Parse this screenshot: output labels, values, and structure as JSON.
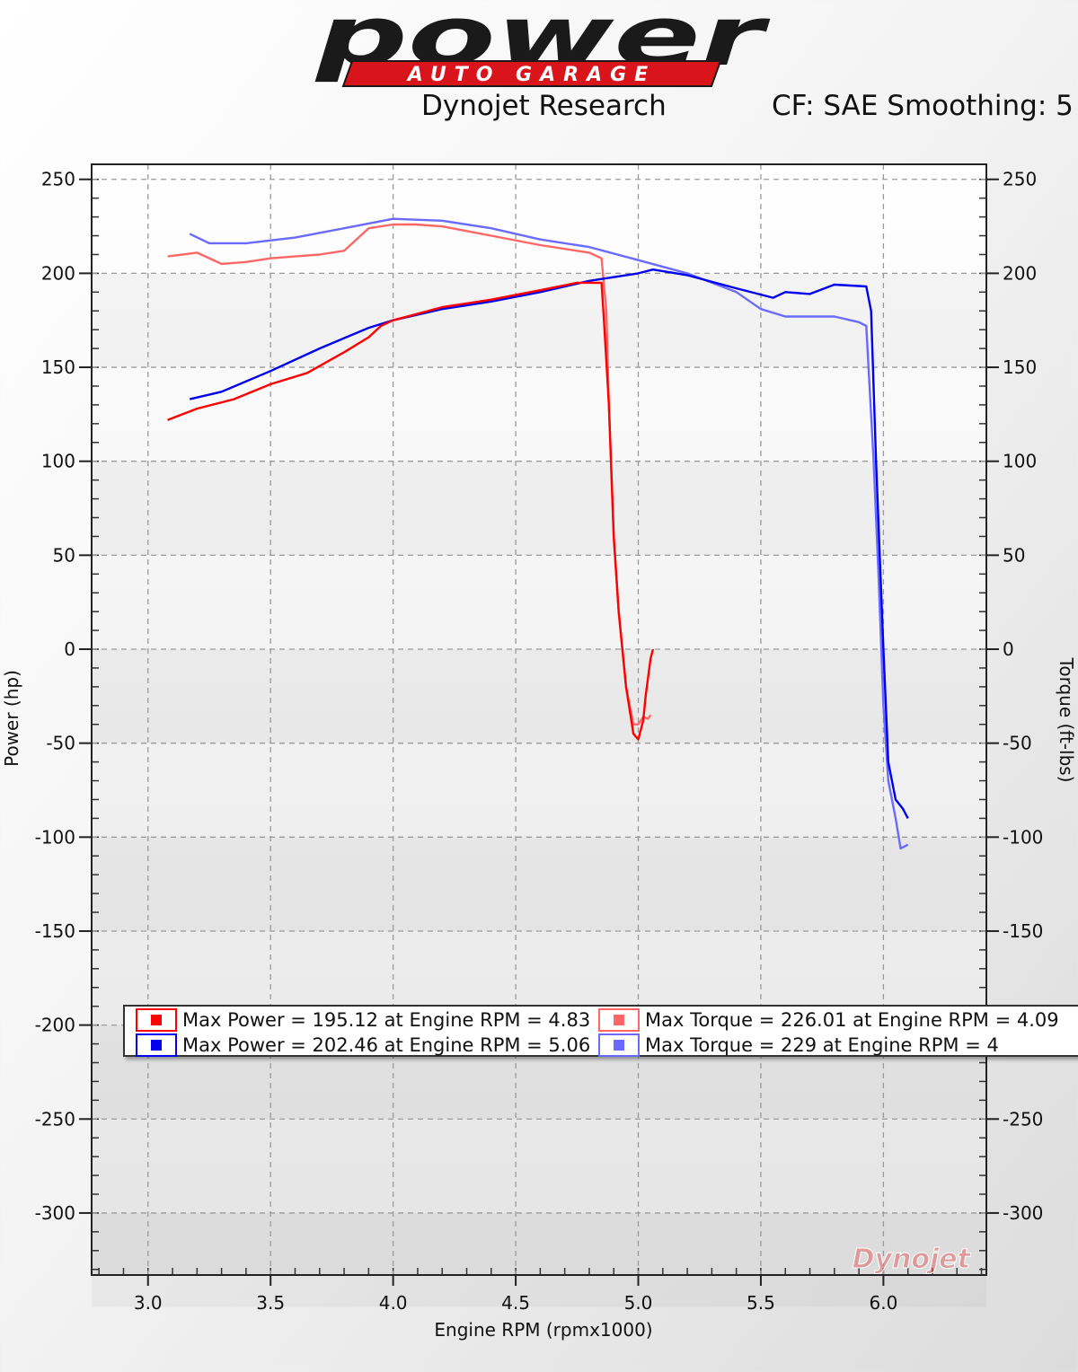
{
  "logo": {
    "main": "power",
    "sub": "AUTO GARAGE"
  },
  "header": {
    "left": "Dynojet Research",
    "right": "CF: SAE Smoothing: 5"
  },
  "colors": {
    "run1_power": "#ff0000",
    "run1_torque": "#ff6666",
    "run2_power": "#0000ee",
    "run2_torque": "#6a6aff"
  },
  "chart_data": {
    "type": "line",
    "xlabel": "Engine RPM (rpmx1000)",
    "ylabel": "Power (hp)",
    "y2label": "Torque (ft-lbs)",
    "xlim": [
      2.77,
      6.42
    ],
    "ylim": [
      -333,
      258
    ],
    "xticks": [
      "3.0",
      "3.5",
      "4.0",
      "4.5",
      "5.0",
      "5.5",
      "6.0"
    ],
    "yticks": [
      "250",
      "200",
      "150",
      "100",
      "50",
      "0",
      "-50",
      "-100",
      "-150",
      "-200",
      "-250",
      "-300"
    ],
    "grid": true,
    "watermark": "Dynojet",
    "series": [
      {
        "name": "Max Power = 195.12 at Engine RPM = 4.83",
        "color": "#ff0000",
        "x": [
          3.08,
          3.2,
          3.35,
          3.5,
          3.65,
          3.8,
          3.9,
          3.95,
          4.0,
          4.2,
          4.4,
          4.6,
          4.75,
          4.85,
          4.86,
          4.88,
          4.9,
          4.92,
          4.95,
          4.98,
          5.0,
          5.02,
          5.03,
          5.05,
          5.06
        ],
        "y": [
          122,
          128,
          133,
          141,
          147,
          158,
          166,
          172,
          175,
          182,
          186,
          191,
          195,
          195,
          175,
          130,
          60,
          20,
          -20,
          -45,
          -48,
          -38,
          -25,
          -5,
          0
        ]
      },
      {
        "name": "Max Power = 202.46 at Engine RPM = 5.06",
        "color": "#0000ee",
        "x": [
          3.17,
          3.3,
          3.5,
          3.7,
          3.9,
          4.0,
          4.2,
          4.4,
          4.6,
          4.8,
          5.0,
          5.06,
          5.2,
          5.4,
          5.55,
          5.6,
          5.7,
          5.8,
          5.93,
          5.95,
          5.97,
          6.0,
          6.02,
          6.05,
          6.08,
          6.1
        ],
        "y": [
          133,
          137,
          148,
          160,
          171,
          175,
          181,
          185,
          190,
          196,
          200,
          202,
          199,
          192,
          187,
          190,
          189,
          194,
          193,
          180,
          100,
          0,
          -60,
          -80,
          -85,
          -90
        ]
      },
      {
        "name": "Max Torque = 226.01 at Engine RPM = 4.09",
        "color": "#ff6666",
        "x": [
          3.08,
          3.2,
          3.3,
          3.4,
          3.5,
          3.6,
          3.7,
          3.8,
          3.9,
          4.0,
          4.09,
          4.2,
          4.4,
          4.6,
          4.8,
          4.85,
          4.87,
          4.88,
          4.9,
          4.92,
          4.95,
          4.98,
          5.0,
          5.02,
          5.04,
          5.05
        ],
        "y": [
          209,
          211,
          205,
          206,
          208,
          209,
          210,
          212,
          224,
          226,
          226,
          225,
          220,
          215,
          211,
          208,
          180,
          130,
          60,
          20,
          -20,
          -40,
          -40,
          -36,
          -37,
          -35
        ]
      },
      {
        "name": "Max Torque = 229 at Engine RPM = 4",
        "color": "#6a6aff",
        "x": [
          3.17,
          3.25,
          3.4,
          3.6,
          3.8,
          4.0,
          4.2,
          4.4,
          4.6,
          4.8,
          5.0,
          5.2,
          5.4,
          5.5,
          5.6,
          5.7,
          5.8,
          5.9,
          5.93,
          5.96,
          5.98,
          6.0,
          6.02,
          6.05,
          6.07,
          6.1
        ],
        "y": [
          221,
          216,
          216,
          219,
          224,
          229,
          228,
          224,
          218,
          214,
          207,
          200,
          190,
          181,
          177,
          177,
          177,
          174,
          172,
          100,
          40,
          -30,
          -70,
          -90,
          -106,
          -104
        ]
      }
    ]
  }
}
